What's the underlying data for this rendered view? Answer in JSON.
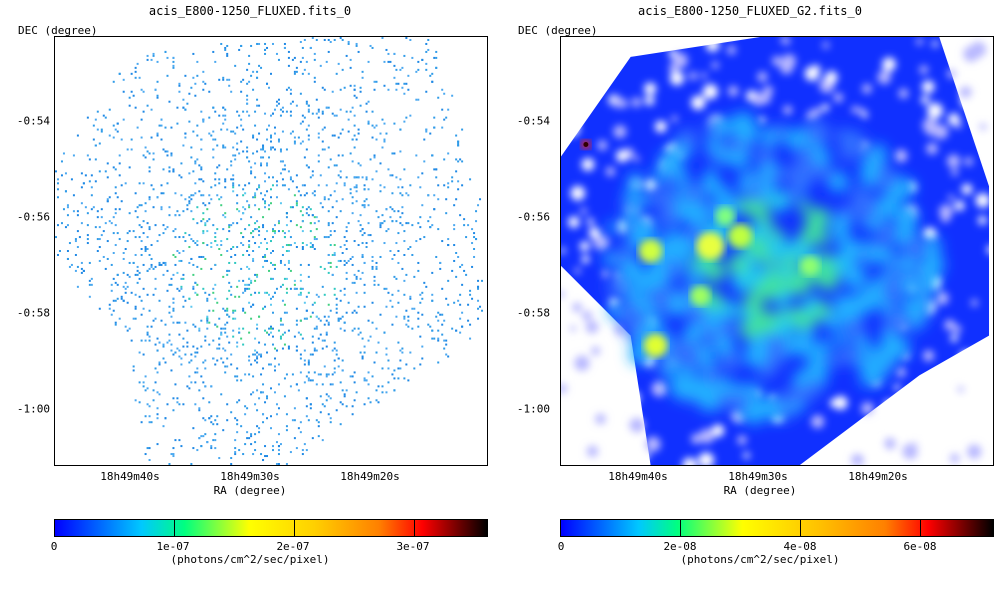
{
  "chart_data": [
    {
      "type": "heatmap",
      "title": "acis_E800-1250_FLUXED.fits_0",
      "xlabel": "RA (degree)",
      "ylabel": "DEC (degree)",
      "x_ticks": [
        "18h49m40s",
        "18h49m30s",
        "18h49m20s"
      ],
      "y_ticks": [
        "-0:54",
        "-0:56",
        "-0:58",
        "-1:00"
      ],
      "colorbar": {
        "label": "(photons/cm^2/sec/pixel)",
        "ticks": [
          "0",
          "1e-07",
          "2e-07",
          "3e-07"
        ],
        "tick_values": [
          0,
          1e-07,
          2e-07,
          3e-07
        ],
        "range": [
          0,
          3.6e-07
        ]
      }
    },
    {
      "type": "heatmap",
      "title": "acis_E800-1250_FLUXED_G2.fits_0",
      "xlabel": "RA (degree)",
      "ylabel": "DEC (degree)",
      "x_ticks": [
        "18h49m40s",
        "18h49m30s",
        "18h49m20s"
      ],
      "y_ticks": [
        "-0:54",
        "-0:56",
        "-0:58",
        "-1:00"
      ],
      "colorbar": {
        "label": "(photons/cm^2/sec/pixel)",
        "ticks": [
          "0",
          "2e-08",
          "4e-08",
          "6e-08"
        ],
        "tick_values": [
          0,
          2e-08,
          4e-08,
          6e-08
        ],
        "range": [
          0,
          7.2e-08
        ]
      }
    }
  ]
}
